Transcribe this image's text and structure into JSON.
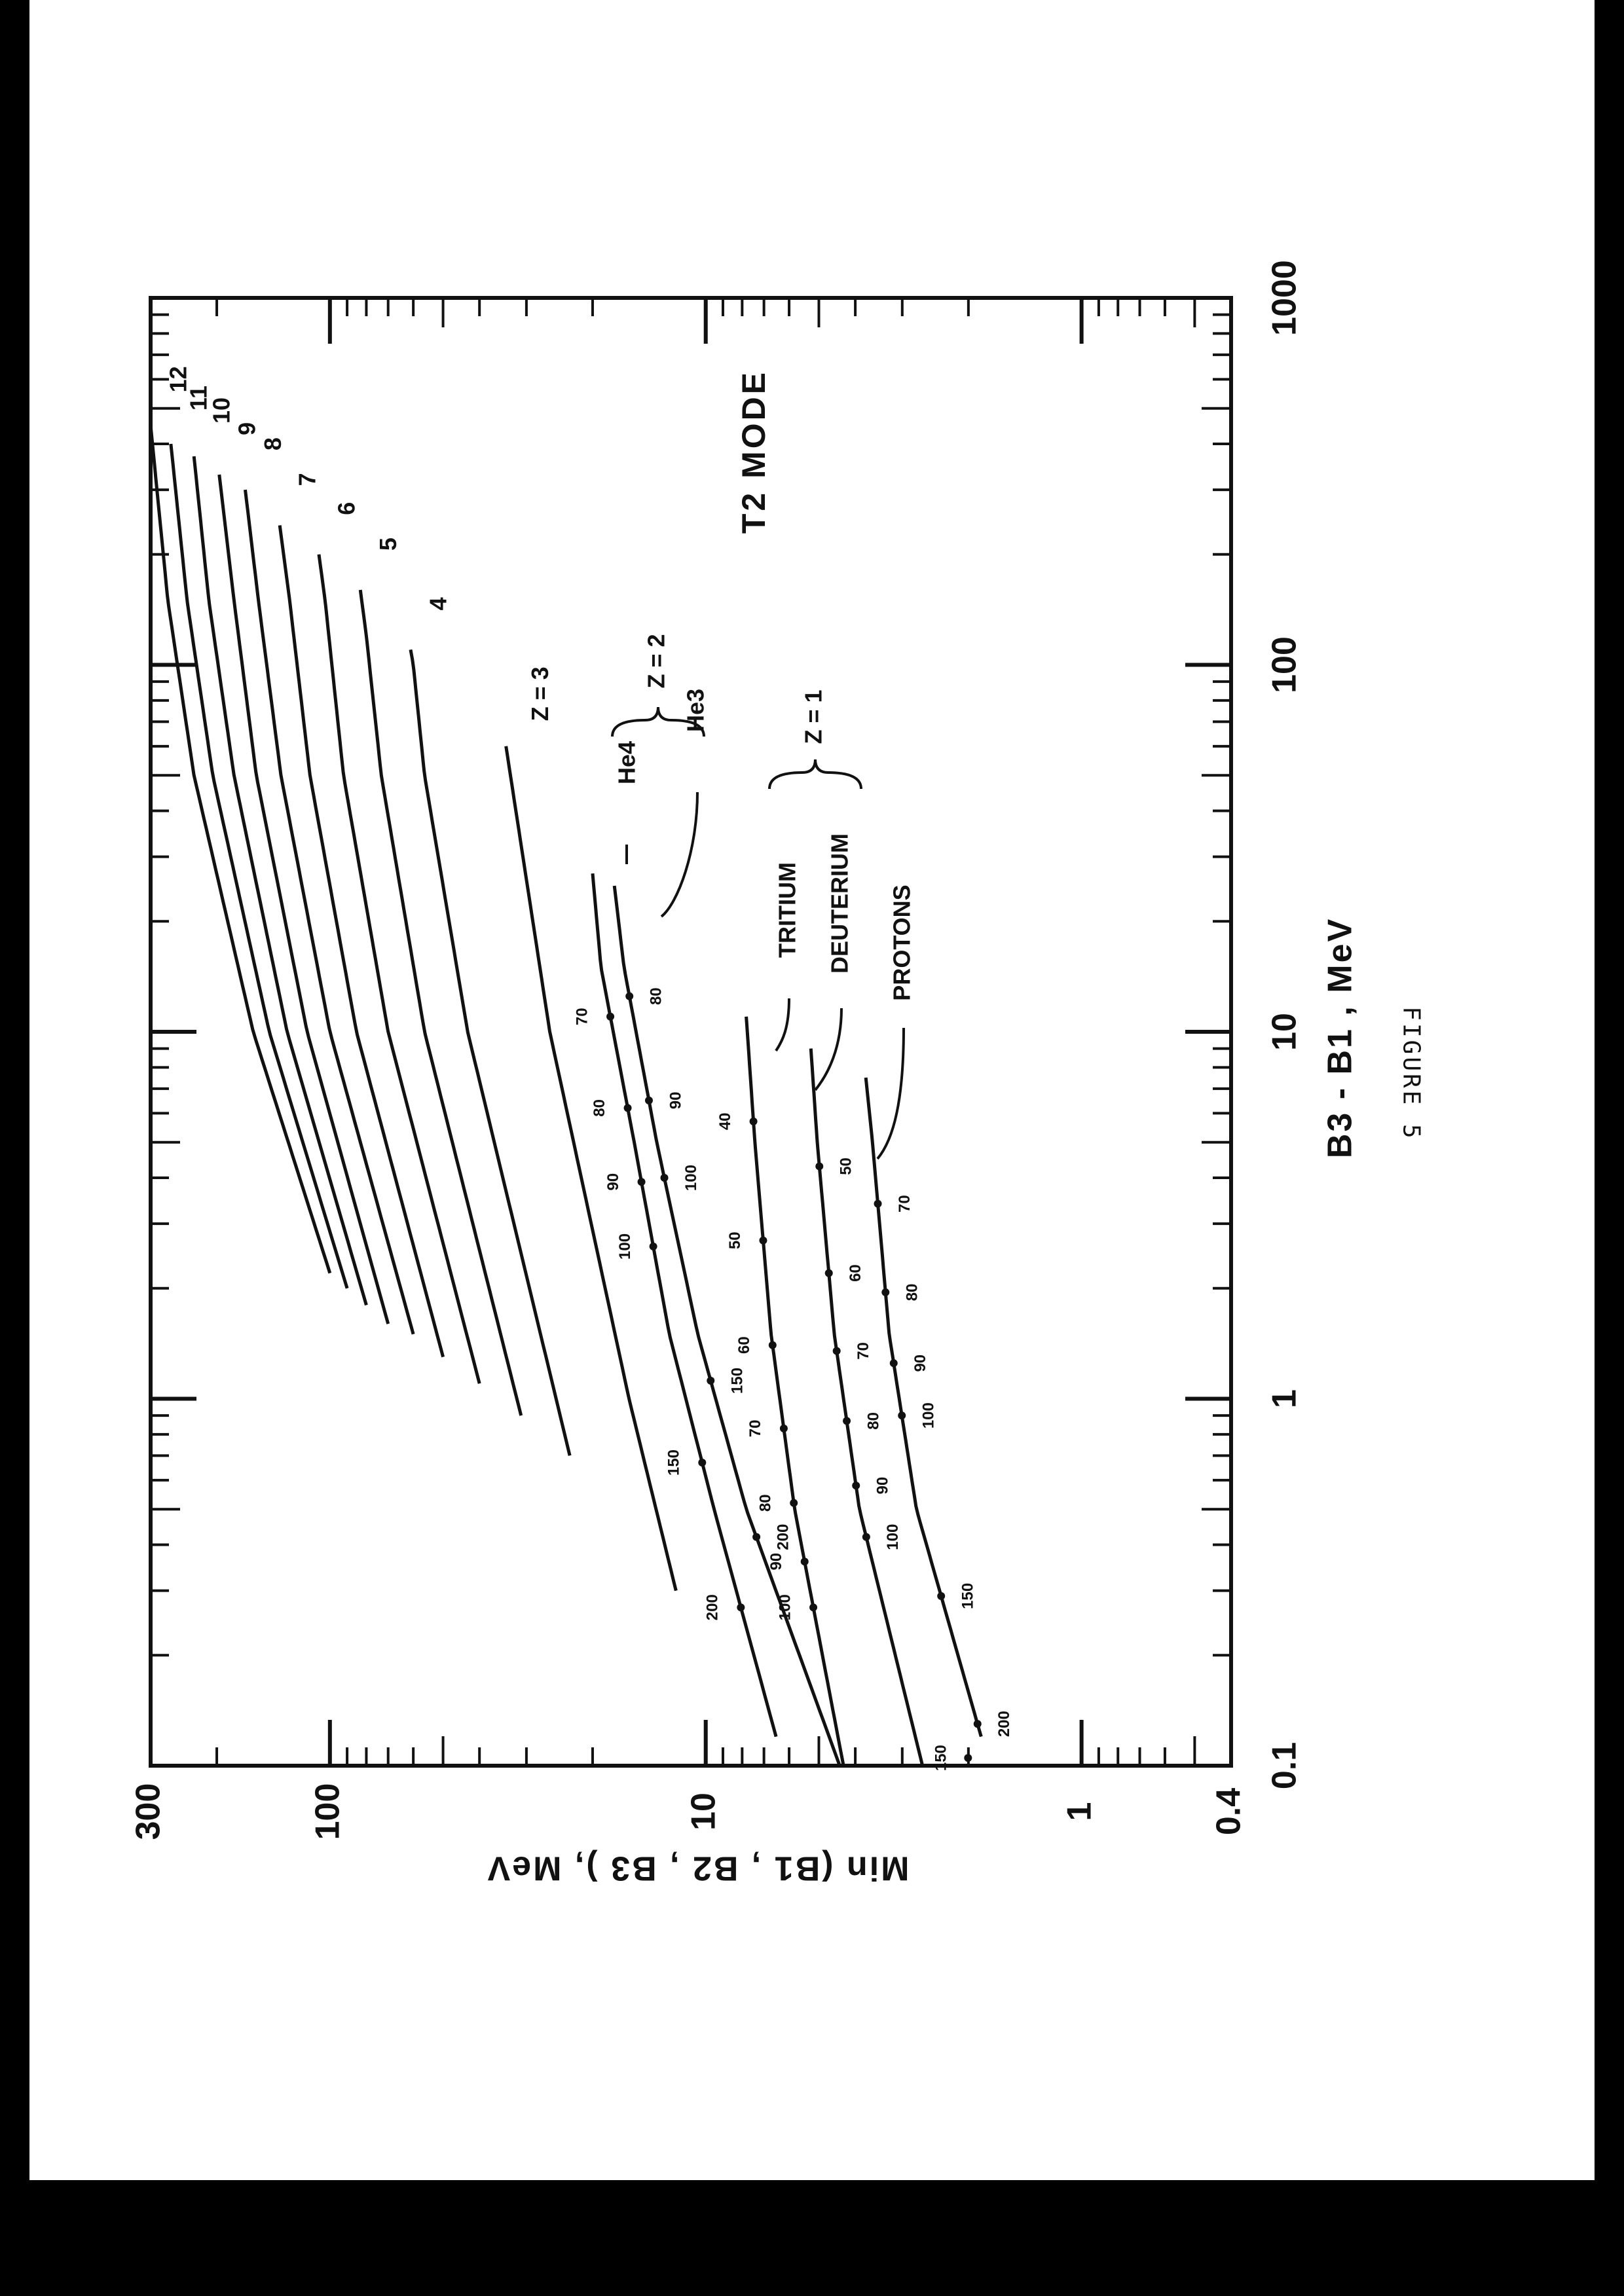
{
  "chart_data": {
    "type": "line",
    "title": "T2 MODE",
    "xlabel": "B3 - B1 , MeV",
    "ylabel": "Min (B1 , B2 , B3 ), MeV",
    "x_scale": "log",
    "y_scale": "log",
    "xlim": [
      0.1,
      1000
    ],
    "ylim": [
      0.4,
      300
    ],
    "x_ticks": [
      "0.1",
      "1",
      "10",
      "100",
      "1000"
    ],
    "y_ticks": [
      "0.4",
      "1",
      "10",
      "100",
      "300"
    ],
    "group_labels": {
      "z2": "Z = 2",
      "z1": "Z = 1"
    },
    "series": [
      {
        "name": "12",
        "label": "12",
        "x": [
          2.2,
          10,
          50,
          150,
          450
        ],
        "y": [
          100,
          160,
          230,
          270,
          300
        ]
      },
      {
        "name": "11",
        "label": "11",
        "x": [
          2.0,
          10,
          50,
          150,
          400
        ],
        "y": [
          90,
          145,
          205,
          240,
          265
        ]
      },
      {
        "name": "10",
        "label": "10",
        "x": [
          1.8,
          10,
          50,
          150,
          370
        ],
        "y": [
          80,
          130,
          180,
          210,
          230
        ]
      },
      {
        "name": "9",
        "label": "9",
        "x": [
          1.6,
          10,
          50,
          150,
          330
        ],
        "y": [
          70,
          115,
          157,
          180,
          197
        ]
      },
      {
        "name": "8",
        "label": "8",
        "x": [
          1.5,
          10,
          50,
          150,
          300
        ],
        "y": [
          60,
          100,
          135,
          155,
          168
        ]
      },
      {
        "name": "7",
        "label": "7",
        "x": [
          1.3,
          10,
          50,
          150,
          240
        ],
        "y": [
          50,
          85,
          113,
          128,
          136
        ]
      },
      {
        "name": "6",
        "label": "6",
        "x": [
          1.1,
          10,
          50,
          150,
          200
        ],
        "y": [
          40,
          70,
          92,
          103,
          107
        ]
      },
      {
        "name": "5",
        "label": "5",
        "x": [
          0.9,
          10,
          50,
          120,
          160
        ],
        "y": [
          31,
          56,
          73,
          80,
          83
        ]
      },
      {
        "name": "4",
        "label": "4",
        "x": [
          0.7,
          10,
          50,
          100,
          110
        ],
        "y": [
          23,
          43,
          56,
          60,
          61
        ]
      },
      {
        "name": "Z = 3",
        "label": "Z = 3",
        "x": [
          0.3,
          1,
          10,
          40,
          60
        ],
        "y": [
          12,
          16,
          26,
          32,
          34
        ]
      },
      {
        "name": "He4",
        "label": "He4",
        "x": [
          0.12,
          0.5,
          1.5,
          5,
          15,
          27
        ],
        "y": [
          6.5,
          9.5,
          12.5,
          15.5,
          19,
          20
        ]
      },
      {
        "name": "He3",
        "label": "He3",
        "x": [
          0.1,
          0.5,
          1.5,
          5,
          15,
          25
        ],
        "y": [
          4.4,
          7.8,
          10.5,
          13.5,
          16.5,
          17.5
        ]
      },
      {
        "name": "TRITIUM",
        "label": "TRITIUM",
        "x": [
          0.1,
          0.5,
          1.5,
          5,
          11
        ],
        "y": [
          4.3,
          5.8,
          6.7,
          7.4,
          7.8
        ]
      },
      {
        "name": "DEUTERIUM",
        "label": "DEUTERIUM",
        "x": [
          0.1,
          0.5,
          1.5,
          5,
          9
        ],
        "y": [
          2.65,
          3.9,
          4.55,
          5.05,
          5.25
        ]
      },
      {
        "name": "PROTONS",
        "label": "PROTONS",
        "x": [
          0.12,
          0.5,
          1.5,
          5,
          7.5
        ],
        "y": [
          1.85,
          2.75,
          3.25,
          3.6,
          3.75
        ]
      }
    ],
    "point_labels": [
      {
        "series": "He4",
        "items": [
          {
            "text": "200",
            "x": 0.27
          },
          {
            "text": "150",
            "x": 0.67
          },
          {
            "text": "100",
            "x": 2.6
          },
          {
            "text": "90",
            "x": 3.9
          },
          {
            "text": "80",
            "x": 6.2
          },
          {
            "text": "70",
            "x": 11
          }
        ]
      },
      {
        "series": "He3",
        "items": [
          {
            "text": "200",
            "x": 0.42
          },
          {
            "text": "150",
            "x": 1.12
          },
          {
            "text": "100",
            "x": 4.0
          },
          {
            "text": "90",
            "x": 6.5
          },
          {
            "text": "80",
            "x": 12.5
          }
        ]
      },
      {
        "series": "TRITIUM",
        "items": [
          {
            "text": "100",
            "x": 0.27
          },
          {
            "text": "90",
            "x": 0.36
          },
          {
            "text": "80",
            "x": 0.52
          },
          {
            "text": "70",
            "x": 0.83
          },
          {
            "text": "60",
            "x": 1.4
          },
          {
            "text": "50",
            "x": 2.7
          },
          {
            "text": "40",
            "x": 5.7
          }
        ]
      },
      {
        "series": "DEUTERIUM",
        "items": [
          {
            "text": "100",
            "x": 0.42
          },
          {
            "text": "90",
            "x": 0.58
          },
          {
            "text": "80",
            "x": 0.87
          },
          {
            "text": "70",
            "x": 1.35
          },
          {
            "text": "60",
            "x": 2.2
          },
          {
            "text": "50",
            "x": 4.3
          }
        ]
      },
      {
        "series": "PROTONS",
        "items": [
          {
            "text": "200",
            "x": 0.13
          },
          {
            "text": "150",
            "x": 0.29
          },
          {
            "text": "100",
            "x": 0.9
          },
          {
            "text": "90",
            "x": 1.25
          },
          {
            "text": "80",
            "x": 1.95
          },
          {
            "text": "70",
            "x": 3.4
          }
        ]
      }
    ],
    "extra_points": [
      {
        "series": "PROTONS",
        "text": "150",
        "x": 0.1
      }
    ],
    "grid": false,
    "legend": "none"
  },
  "caption": "FIGURE 5"
}
